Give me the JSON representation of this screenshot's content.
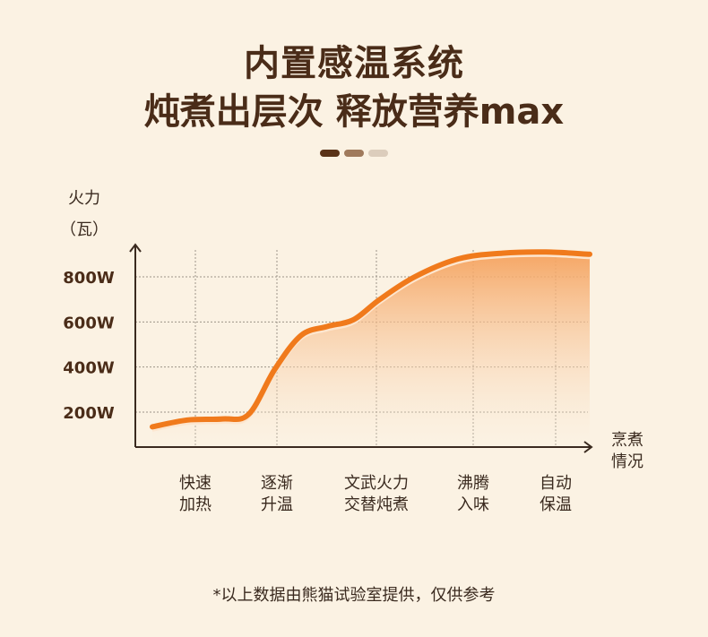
{
  "header": {
    "title_line1": "内置感温系统",
    "title_line2": "炖煮出层次 释放营养max"
  },
  "indicator": {
    "colors": [
      "#5a3318",
      "#a07a5c",
      "#dccdbc"
    ]
  },
  "chart_data": {
    "type": "area",
    "title": "",
    "ylabel_line1": "火力",
    "ylabel_line2": "（瓦）",
    "xlabel_line1": "烹煮",
    "xlabel_line2": "情况",
    "y_ticks": [
      "800W",
      "600W",
      "400W",
      "200W"
    ],
    "y_tick_values": [
      800,
      600,
      400,
      200
    ],
    "ylim": [
      0,
      1000
    ],
    "grid": true,
    "categories": [
      [
        "快速",
        "加热"
      ],
      [
        "逐渐",
        "升温"
      ],
      [
        "文武火力",
        "交替炖煮"
      ],
      [
        "沸腾",
        "入味"
      ],
      [
        "自动",
        "保温"
      ]
    ],
    "series": [
      {
        "points": [
          [
            0.0,
            135
          ],
          [
            0.4,
            165
          ],
          [
            0.8,
            170
          ],
          [
            1.1,
            190
          ],
          [
            1.4,
            390
          ],
          [
            1.7,
            540
          ],
          [
            2.0,
            580
          ],
          [
            2.3,
            610
          ],
          [
            2.6,
            700
          ],
          [
            3.0,
            800
          ],
          [
            3.5,
            880
          ],
          [
            4.0,
            905
          ],
          [
            4.5,
            910
          ],
          [
            5.0,
            900
          ]
        ]
      }
    ],
    "colors": {
      "line": "#f07a1c",
      "fill_top": "#f5a15c",
      "fill_bottom": "#fbf2e3",
      "axis": "#3a2a1f",
      "grid": "#9c9488",
      "label": "#4a2c18"
    }
  },
  "footnote": "*以上数据由熊猫试验室提供，仅供参考"
}
